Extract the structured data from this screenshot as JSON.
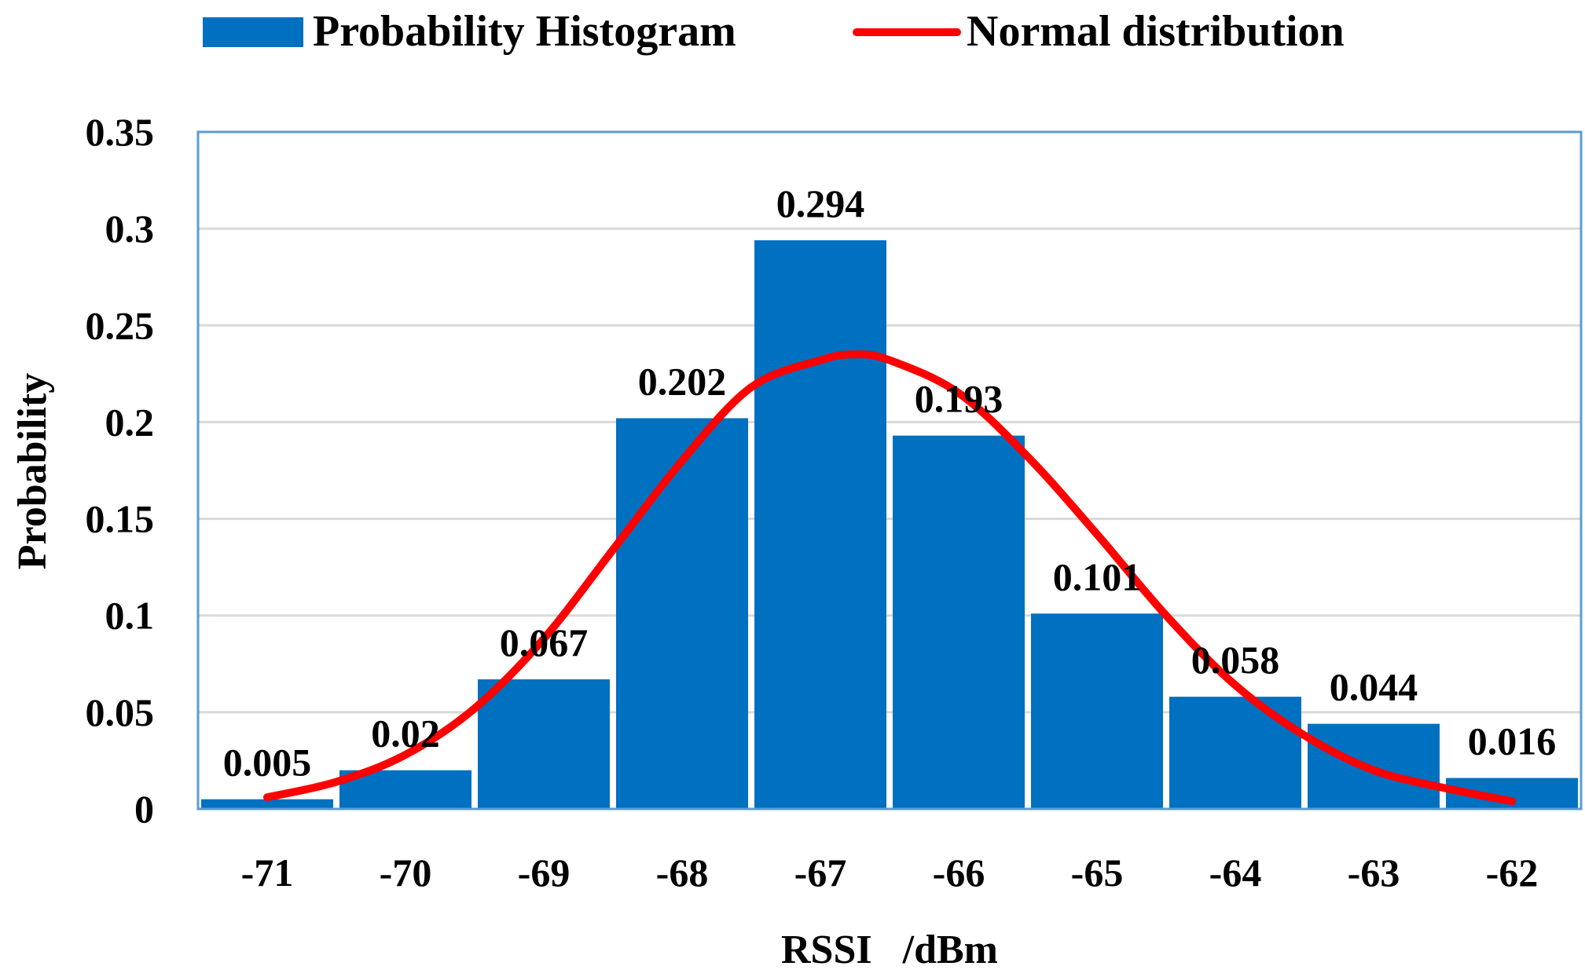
{
  "chart_data": {
    "type": "bar",
    "categories": [
      "-71",
      "-70",
      "-69",
      "-68",
      "-67",
      "-66",
      "-65",
      "-64",
      "-63",
      "-62"
    ],
    "series": [
      {
        "name": "Probability Histogram",
        "kind": "bar",
        "color": "#0070C0",
        "values": [
          0.005,
          0.02,
          0.067,
          0.202,
          0.294,
          0.193,
          0.101,
          0.058,
          0.044,
          0.016
        ],
        "labels": [
          "0.005",
          "0.02",
          "0.067",
          "0.202",
          "0.294",
          "0.193",
          "0.101",
          "0.058",
          "0.044",
          "0.016"
        ]
      },
      {
        "name": "Normal distribution",
        "kind": "line",
        "color": "#FF0000",
        "x": [
          -71,
          -70.5,
          -70,
          -69.5,
          -69,
          -68.5,
          -68,
          -67.5,
          -67,
          -66.75,
          -66.5,
          -66,
          -65.5,
          -65,
          -64.5,
          -64,
          -63.5,
          -63,
          -62.5,
          -62
        ],
        "y": [
          0.006,
          0.014,
          0.028,
          0.052,
          0.088,
          0.134,
          0.18,
          0.218,
          0.232,
          0.235,
          0.232,
          0.215,
          0.182,
          0.142,
          0.1,
          0.064,
          0.038,
          0.02,
          0.011,
          0.004
        ]
      }
    ],
    "title": "",
    "xlabel": "RSSI   /dBm",
    "ylabel": "Probability",
    "ylim": [
      0,
      0.35
    ],
    "yticks": [
      0,
      0.05,
      0.1,
      0.15,
      0.2,
      0.25,
      0.3,
      0.35
    ],
    "ytick_labels": [
      "0",
      "0.05",
      "0.1",
      "0.15",
      "0.2",
      "0.25",
      "0.3",
      "0.35"
    ],
    "grid": true,
    "legend_position": "top"
  }
}
